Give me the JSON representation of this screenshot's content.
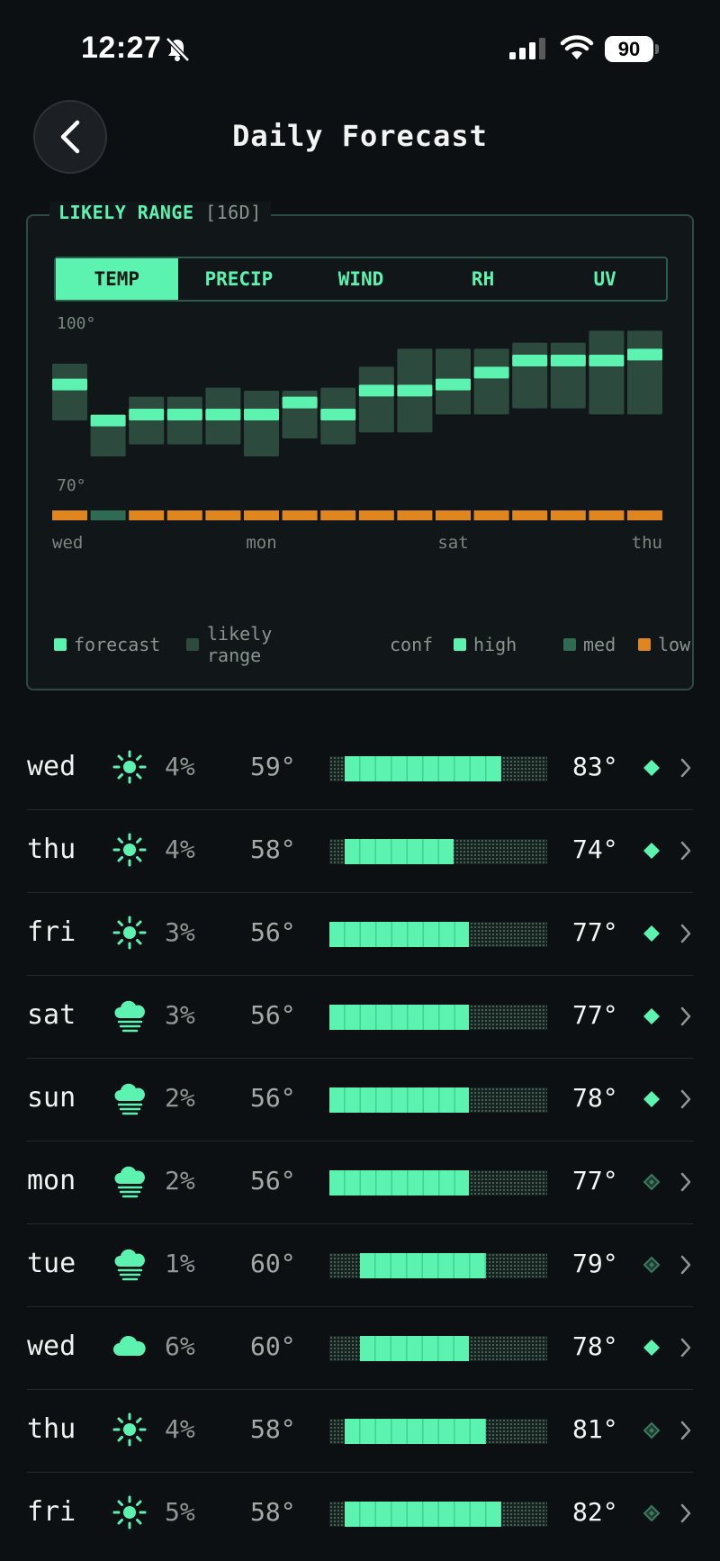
{
  "status_bar": {
    "time": "12:27",
    "battery": "90"
  },
  "header": {
    "title": "Daily Forecast"
  },
  "card": {
    "title": "LIKELY RANGE",
    "subtitle": "[16D]",
    "tabs": [
      {
        "label": "TEMP",
        "active": true
      },
      {
        "label": "PRECIP",
        "active": false
      },
      {
        "label": "WIND",
        "active": false
      },
      {
        "label": "RH",
        "active": false
      },
      {
        "label": "UV",
        "active": false
      }
    ],
    "legend": {
      "forecast": "forecast",
      "likely_range_line1": "likely",
      "likely_range_line2": "range",
      "conf": "conf",
      "high": "high",
      "med": "med",
      "low": "low"
    }
  },
  "chart_data": {
    "type": "heatmap",
    "y_tick_labels": [
      "100°",
      "70°"
    ],
    "ylim": [
      70,
      100
    ],
    "x_tick_labels": [
      "wed",
      "mon",
      "sat",
      "thu"
    ],
    "x_tick_day_index": [
      0,
      5,
      10,
      15
    ],
    "days": 16,
    "forecast": [
      87,
      81,
      82,
      82,
      82,
      82,
      84,
      82,
      86,
      86,
      87,
      89,
      91,
      91,
      91,
      92
    ],
    "range_low": [
      82,
      76,
      78,
      78,
      78,
      76,
      79,
      78,
      80,
      80,
      83,
      83,
      84,
      84,
      83,
      83
    ],
    "range_high": [
      91,
      82,
      86,
      86,
      87,
      87,
      87,
      87,
      91,
      93,
      93,
      94,
      94,
      94,
      96,
      97
    ],
    "confidence": [
      "low",
      "med",
      "low",
      "low",
      "low",
      "low",
      "low",
      "low",
      "low",
      "low",
      "low",
      "low",
      "low",
      "low",
      "low",
      "low"
    ],
    "colors": {
      "forecast": "#5cf2b0",
      "range": "#2c4a3e",
      "high": "#5cf2b0",
      "med": "#2f6a52",
      "low": "#e0861e"
    }
  },
  "forecast": [
    {
      "day": "wed",
      "icon": "sun-icon",
      "precip": "4%",
      "low": "59°",
      "high": "83°",
      "range_start": 0.07,
      "range_end": 0.79,
      "bar_span": [
        0.07,
        0.79
      ],
      "conf": "high"
    },
    {
      "day": "thu",
      "icon": "sun-icon",
      "precip": "4%",
      "low": "58°",
      "high": "74°",
      "range_start": 0.07,
      "range_end": 0.57,
      "conf": "high"
    },
    {
      "day": "fri",
      "icon": "sun-icon",
      "precip": "3%",
      "low": "56°",
      "high": "77°",
      "range_start": 0.0,
      "range_end": 0.64,
      "conf": "high"
    },
    {
      "day": "sat",
      "icon": "fog-icon",
      "precip": "3%",
      "low": "56°",
      "high": "77°",
      "range_start": 0.0,
      "range_end": 0.64,
      "conf": "high"
    },
    {
      "day": "sun",
      "icon": "fog-icon",
      "precip": "2%",
      "low": "56°",
      "high": "78°",
      "range_start": 0.0,
      "range_end": 0.64,
      "conf": "high"
    },
    {
      "day": "mon",
      "icon": "fog-icon",
      "precip": "2%",
      "low": "56°",
      "high": "77°",
      "range_start": 0.0,
      "range_end": 0.64,
      "conf": "med"
    },
    {
      "day": "tue",
      "icon": "fog-icon",
      "precip": "1%",
      "low": "60°",
      "high": "79°",
      "range_start": 0.14,
      "range_end": 0.72,
      "conf": "med"
    },
    {
      "day": "wed",
      "icon": "cloud-icon",
      "precip": "6%",
      "low": "60°",
      "high": "78°",
      "range_start": 0.14,
      "range_end": 0.64,
      "conf": "high"
    },
    {
      "day": "thu",
      "icon": "sun-icon",
      "precip": "4%",
      "low": "58°",
      "high": "81°",
      "range_start": 0.07,
      "range_end": 0.72,
      "conf": "med"
    },
    {
      "day": "fri",
      "icon": "sun-icon",
      "precip": "5%",
      "low": "58°",
      "high": "82°",
      "range_start": 0.07,
      "range_end": 0.79,
      "conf": "med"
    }
  ]
}
